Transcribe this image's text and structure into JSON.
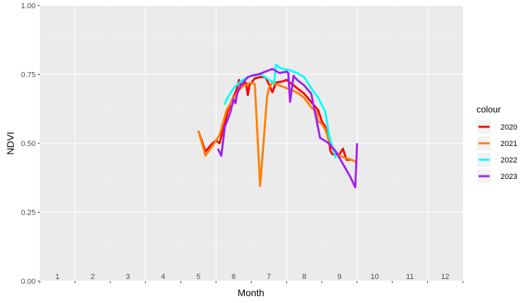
{
  "chart_data": {
    "type": "line",
    "xlabel": "Month",
    "ylabel": "NDVI",
    "xlim": [
      0.5,
      12.5
    ],
    "ylim": [
      0,
      1
    ],
    "x_ticks": [
      1,
      2,
      3,
      4,
      5,
      6,
      7,
      8,
      9,
      10,
      11,
      12
    ],
    "y_ticks": [
      "0.00",
      "0.25",
      "0.50",
      "0.75",
      "1.00"
    ],
    "grid": true,
    "background": "#EBEBEB",
    "legend": {
      "title": "colour",
      "position": "right"
    },
    "series": [
      {
        "name": "2020",
        "color": "#FF0000",
        "points": [
          [
            5.0,
            0.545
          ],
          [
            5.2,
            0.47
          ],
          [
            5.4,
            0.5
          ],
          [
            5.5,
            0.51
          ],
          [
            5.6,
            0.5
          ],
          [
            5.8,
            0.6
          ],
          [
            5.9,
            0.64
          ],
          [
            6.0,
            0.67
          ],
          [
            6.1,
            0.7
          ],
          [
            6.15,
            0.73
          ],
          [
            6.2,
            0.71
          ],
          [
            6.35,
            0.72
          ],
          [
            6.4,
            0.675
          ],
          [
            6.45,
            0.71
          ],
          [
            6.5,
            0.72
          ],
          [
            6.6,
            0.735
          ],
          [
            6.75,
            0.74
          ],
          [
            6.9,
            0.74
          ],
          [
            7.0,
            0.715
          ],
          [
            7.1,
            0.685
          ],
          [
            7.2,
            0.72
          ],
          [
            7.4,
            0.725
          ],
          [
            7.5,
            0.73
          ],
          [
            7.6,
            0.72
          ],
          [
            7.8,
            0.7
          ],
          [
            8.0,
            0.68
          ],
          [
            8.2,
            0.65
          ],
          [
            8.4,
            0.62
          ],
          [
            8.5,
            0.58
          ],
          [
            8.6,
            0.56
          ],
          [
            8.7,
            0.51
          ],
          [
            8.75,
            0.47
          ],
          [
            8.8,
            0.46
          ],
          [
            9.0,
            0.46
          ],
          [
            9.1,
            0.48
          ],
          [
            9.2,
            0.44
          ],
          [
            9.35,
            0.44
          ]
        ]
      },
      {
        "name": "2021",
        "color": "#FF8000",
        "points": [
          [
            5.0,
            0.545
          ],
          [
            5.2,
            0.455
          ],
          [
            5.4,
            0.49
          ],
          [
            5.6,
            0.53
          ],
          [
            5.8,
            0.62
          ],
          [
            6.0,
            0.665
          ],
          [
            6.1,
            0.685
          ],
          [
            6.2,
            0.7
          ],
          [
            6.3,
            0.71
          ],
          [
            6.5,
            0.72
          ],
          [
            6.6,
            0.715
          ],
          [
            6.75,
            0.345
          ],
          [
            6.95,
            0.67
          ],
          [
            7.0,
            0.7
          ],
          [
            7.1,
            0.72
          ],
          [
            7.3,
            0.71
          ],
          [
            7.5,
            0.7
          ],
          [
            7.7,
            0.69
          ],
          [
            7.85,
            0.68
          ],
          [
            8.0,
            0.665
          ],
          [
            8.2,
            0.63
          ],
          [
            8.35,
            0.615
          ],
          [
            8.4,
            0.58
          ],
          [
            8.5,
            0.57
          ],
          [
            8.6,
            0.55
          ],
          [
            8.7,
            0.51
          ],
          [
            8.8,
            0.48
          ],
          [
            9.0,
            0.455
          ],
          [
            9.2,
            0.445
          ],
          [
            9.35,
            0.44
          ],
          [
            9.5,
            0.43
          ]
        ]
      },
      {
        "name": "2022",
        "color": "#00FFFF",
        "points": [
          [
            5.75,
            0.64
          ],
          [
            5.8,
            0.66
          ],
          [
            6.0,
            0.7
          ],
          [
            6.2,
            0.725
          ],
          [
            6.4,
            0.74
          ],
          [
            6.5,
            0.745
          ],
          [
            6.6,
            0.745
          ],
          [
            6.75,
            0.75
          ],
          [
            6.9,
            0.74
          ],
          [
            7.0,
            0.73
          ],
          [
            7.15,
            0.72
          ],
          [
            7.2,
            0.785
          ],
          [
            7.3,
            0.775
          ],
          [
            7.4,
            0.77
          ],
          [
            7.6,
            0.765
          ],
          [
            7.8,
            0.755
          ],
          [
            8.0,
            0.74
          ],
          [
            8.2,
            0.7
          ],
          [
            8.4,
            0.665
          ],
          [
            8.6,
            0.615
          ],
          [
            8.7,
            0.535
          ],
          [
            8.8,
            0.485
          ],
          [
            8.9,
            0.445
          ]
        ]
      },
      {
        "name": "2023",
        "color": "#A020F0",
        "points": [
          [
            5.55,
            0.48
          ],
          [
            5.65,
            0.455
          ],
          [
            5.75,
            0.56
          ],
          [
            5.9,
            0.61
          ],
          [
            6.0,
            0.66
          ],
          [
            6.05,
            0.645
          ],
          [
            6.1,
            0.68
          ],
          [
            6.2,
            0.71
          ],
          [
            6.4,
            0.74
          ],
          [
            6.5,
            0.745
          ],
          [
            6.7,
            0.75
          ],
          [
            6.9,
            0.76
          ],
          [
            7.1,
            0.77
          ],
          [
            7.3,
            0.755
          ],
          [
            7.5,
            0.76
          ],
          [
            7.55,
            0.755
          ],
          [
            7.6,
            0.65
          ],
          [
            7.7,
            0.745
          ],
          [
            7.8,
            0.73
          ],
          [
            8.0,
            0.71
          ],
          [
            8.2,
            0.68
          ],
          [
            8.45,
            0.52
          ],
          [
            8.7,
            0.5
          ],
          [
            8.9,
            0.47
          ],
          [
            9.1,
            0.425
          ],
          [
            9.3,
            0.38
          ],
          [
            9.45,
            0.34
          ],
          [
            9.5,
            0.5
          ]
        ]
      }
    ]
  }
}
